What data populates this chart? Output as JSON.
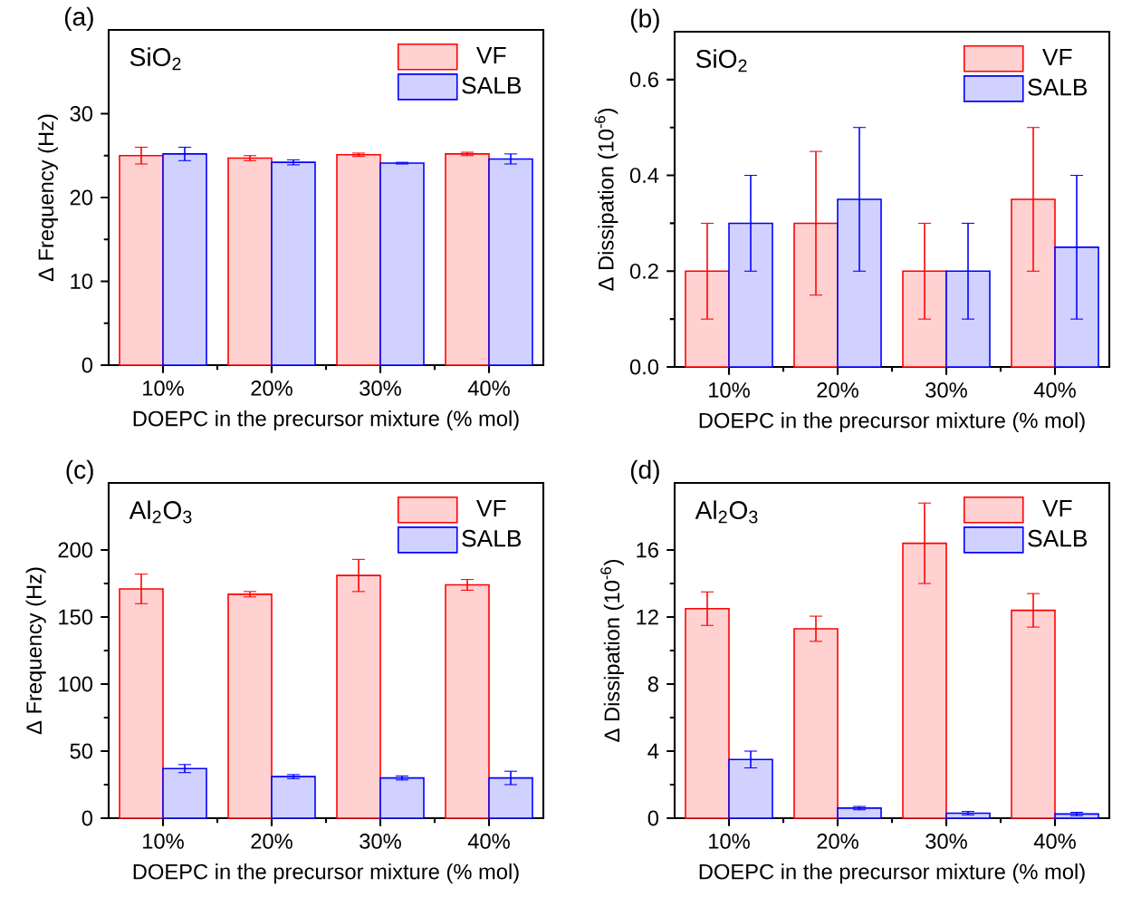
{
  "chart_data": [
    {
      "type": "bar",
      "categories": [
        "10%",
        "20%",
        "30%",
        "40%"
      ],
      "xlabel": "DOEPC in the precursor mixture (% mol)",
      "ylabel": "Δ Frequency (Hz)",
      "ylim": [
        0,
        40
      ],
      "yticks": [
        0,
        10,
        20,
        30
      ],
      "legend": "top right",
      "annotations": [
        "(a)",
        "SiO$_{2}$"
      ],
      "series": [
        {
          "name": "VF",
          "color": "#ff0000",
          "values": [
            25,
            24.7,
            25.1,
            25.2
          ],
          "errors": [
            1,
            0.3,
            0.2,
            0.2
          ]
        },
        {
          "name": "SALB",
          "color": "#0000ff",
          "values": [
            25.2,
            24.2,
            24.1,
            24.6
          ],
          "errors": [
            0.8,
            0.3,
            0.1,
            0.6
          ]
        }
      ]
    },
    {
      "type": "bar",
      "categories": [
        "10%",
        "20%",
        "30%",
        "40%"
      ],
      "xlabel": "DOEPC in the precursor mixture (% mol)",
      "ylabel": "Δ Dissipation (10$^{-6}$)",
      "ylim": [
        0,
        0.7
      ],
      "yticks": [
        {
          "value": 0,
          "label": "0.0"
        },
        0.2,
        0.4,
        0.6
      ],
      "legend": "top right",
      "annotations": [
        "(b)",
        "SiO$_{2}$"
      ],
      "series": [
        {
          "name": "VF",
          "color": "#ff0000",
          "values": [
            0.2,
            0.3,
            0.2,
            0.35
          ],
          "errors": [
            0.1,
            0.15,
            0.1,
            0.15
          ]
        },
        {
          "name": "SALB",
          "color": "#0000ff",
          "values": [
            0.3,
            0.35,
            0.2,
            0.25
          ],
          "errors": [
            0.1,
            0.15,
            0.1,
            0.15
          ]
        }
      ]
    },
    {
      "type": "bar",
      "categories": [
        "10%",
        "20%",
        "30%",
        "40%"
      ],
      "xlabel": "DOEPC in the precursor mixture (% mol)",
      "ylabel": "Δ Frequency (Hz)",
      "ylim": [
        0,
        250
      ],
      "yticks": [
        0,
        50,
        100,
        150,
        200
      ],
      "legend": "top right",
      "annotations": [
        "(c)",
        "Al$_{2}$O$_{3}$"
      ],
      "series": [
        {
          "name": "VF",
          "color": "#ff0000",
          "values": [
            171,
            167,
            181,
            174
          ],
          "errors": [
            11,
            2,
            12,
            4
          ]
        },
        {
          "name": "SALB",
          "color": "#0000ff",
          "values": [
            37,
            31,
            30,
            30
          ],
          "errors": [
            3,
            1.5,
            1.5,
            5
          ]
        }
      ]
    },
    {
      "type": "bar",
      "categories": [
        "10%",
        "20%",
        "30%",
        "40%"
      ],
      "xlabel": "DOEPC in the precursor mixture (% mol)",
      "ylabel": "Δ Dissipation (10$^{-6}$)",
      "ylim": [
        0,
        20
      ],
      "yticks": [
        0,
        4,
        8,
        12,
        16
      ],
      "legend": "top right",
      "annotations": [
        "(d)",
        "Al$_{2}$O$_{3}$"
      ],
      "series": [
        {
          "name": "VF",
          "color": "#ff0000",
          "values": [
            12.5,
            11.3,
            16.4,
            12.4
          ],
          "errors": [
            1,
            0.75,
            2.4,
            1
          ]
        },
        {
          "name": "SALB",
          "color": "#0000ff",
          "values": [
            3.5,
            0.6,
            0.3,
            0.25
          ],
          "errors": [
            0.5,
            0.1,
            0.1,
            0.1
          ]
        }
      ]
    }
  ]
}
